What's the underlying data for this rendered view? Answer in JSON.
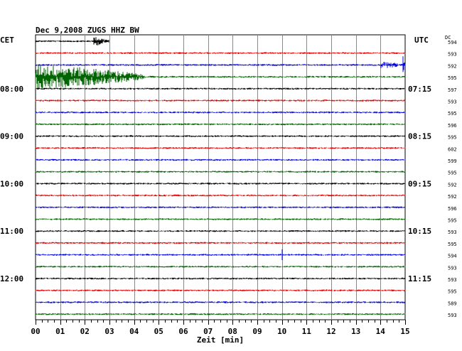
{
  "header": {
    "title": "Dec 9,2008   ZUGS HHZ BW",
    "left_label": "CET",
    "right_label": "UTC",
    "dc_label": "DC"
  },
  "chart_data": {
    "type": "line",
    "title": "Dec 9,2008   ZUGS HHZ BW",
    "xlabel": "Zeit [min]",
    "xlim": [
      0,
      15
    ],
    "x_ticks": [
      "00",
      "01",
      "02",
      "03",
      "04",
      "05",
      "06",
      "07",
      "08",
      "09",
      "10",
      "11",
      "12",
      "13",
      "14",
      "15"
    ],
    "grid": true,
    "left_time_labels": [
      {
        "row": 4,
        "label": "08:00"
      },
      {
        "row": 8,
        "label": "09:00"
      },
      {
        "row": 12,
        "label": "10:00"
      },
      {
        "row": 16,
        "label": "11:00"
      },
      {
        "row": 20,
        "label": "12:00"
      }
    ],
    "right_time_labels": [
      {
        "row": 4,
        "label": "07:15"
      },
      {
        "row": 8,
        "label": "08:15"
      },
      {
        "row": 12,
        "label": "09:15"
      },
      {
        "row": 16,
        "label": "10:15"
      },
      {
        "row": 20,
        "label": "11:15"
      }
    ],
    "traces": [
      {
        "color": "#000000",
        "dc": "594",
        "events": [
          {
            "t": 2.3,
            "amp": 6,
            "len": 0.7
          }
        ]
      },
      {
        "color": "#e00000",
        "dc": "593",
        "events": []
      },
      {
        "color": "#0000e0",
        "dc": "592",
        "events": [
          {
            "t": 14.0,
            "amp": 4,
            "len": 0.9
          },
          {
            "t": 14.9,
            "amp": 14,
            "len": 0.08
          }
        ]
      },
      {
        "color": "#006400",
        "dc": "595",
        "events": [
          {
            "t": 0.0,
            "amp": 17,
            "len": 4.5
          }
        ]
      },
      {
        "color": "#000000",
        "dc": "597",
        "events": []
      },
      {
        "color": "#e00000",
        "dc": "593",
        "events": []
      },
      {
        "color": "#0000e0",
        "dc": "595",
        "events": []
      },
      {
        "color": "#006400",
        "dc": "596",
        "events": []
      },
      {
        "color": "#000000",
        "dc": "595",
        "events": []
      },
      {
        "color": "#e00000",
        "dc": "602",
        "events": []
      },
      {
        "color": "#0000e0",
        "dc": "599",
        "events": []
      },
      {
        "color": "#006400",
        "dc": "595",
        "events": []
      },
      {
        "color": "#000000",
        "dc": "592",
        "events": []
      },
      {
        "color": "#e00000",
        "dc": "592",
        "events": []
      },
      {
        "color": "#0000e0",
        "dc": "596",
        "events": []
      },
      {
        "color": "#006400",
        "dc": "595",
        "events": []
      },
      {
        "color": "#000000",
        "dc": "593",
        "events": []
      },
      {
        "color": "#e00000",
        "dc": "595",
        "events": []
      },
      {
        "color": "#0000e0",
        "dc": "594",
        "events": [
          {
            "t": 10.0,
            "amp": 8,
            "len": 0.05
          }
        ]
      },
      {
        "color": "#006400",
        "dc": "593",
        "events": []
      },
      {
        "color": "#000000",
        "dc": "593",
        "events": []
      },
      {
        "color": "#e00000",
        "dc": "595",
        "events": []
      },
      {
        "color": "#0000e0",
        "dc": "589",
        "events": []
      },
      {
        "color": "#006400",
        "dc": "593",
        "events": []
      }
    ]
  }
}
